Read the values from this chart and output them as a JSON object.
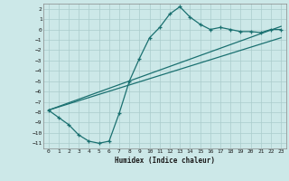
{
  "title": "",
  "xlabel": "Humidex (Indice chaleur)",
  "ylabel": "",
  "background_color": "#cce8e8",
  "grid_color": "#aacccc",
  "line_color": "#1a7070",
  "xlim": [
    -0.5,
    23.5
  ],
  "ylim": [
    -11.5,
    2.5
  ],
  "yticks": [
    2,
    1,
    0,
    -1,
    -2,
    -3,
    -4,
    -5,
    -6,
    -7,
    -8,
    -9,
    -10,
    -11
  ],
  "xticks": [
    0,
    1,
    2,
    3,
    4,
    5,
    6,
    7,
    8,
    9,
    10,
    11,
    12,
    13,
    14,
    15,
    16,
    17,
    18,
    19,
    20,
    21,
    22,
    23
  ],
  "line1_x": [
    0,
    1,
    2,
    3,
    4,
    5,
    6,
    7,
    8,
    9,
    10,
    11,
    12,
    13,
    14,
    15,
    16,
    17,
    18,
    19,
    20,
    21,
    22,
    23
  ],
  "line1_y": [
    -7.8,
    -8.5,
    -9.2,
    -10.2,
    -10.8,
    -11.0,
    -10.8,
    -8.1,
    -5.0,
    -2.8,
    -0.8,
    0.2,
    1.5,
    2.2,
    1.2,
    0.5,
    0.0,
    0.2,
    0.0,
    -0.2,
    -0.2,
    -0.3,
    0.0,
    0.0
  ],
  "line2_x": [
    0,
    23
  ],
  "line2_y": [
    -7.8,
    0.3
  ],
  "line3_x": [
    0,
    23
  ],
  "line3_y": [
    -7.8,
    -0.8
  ]
}
